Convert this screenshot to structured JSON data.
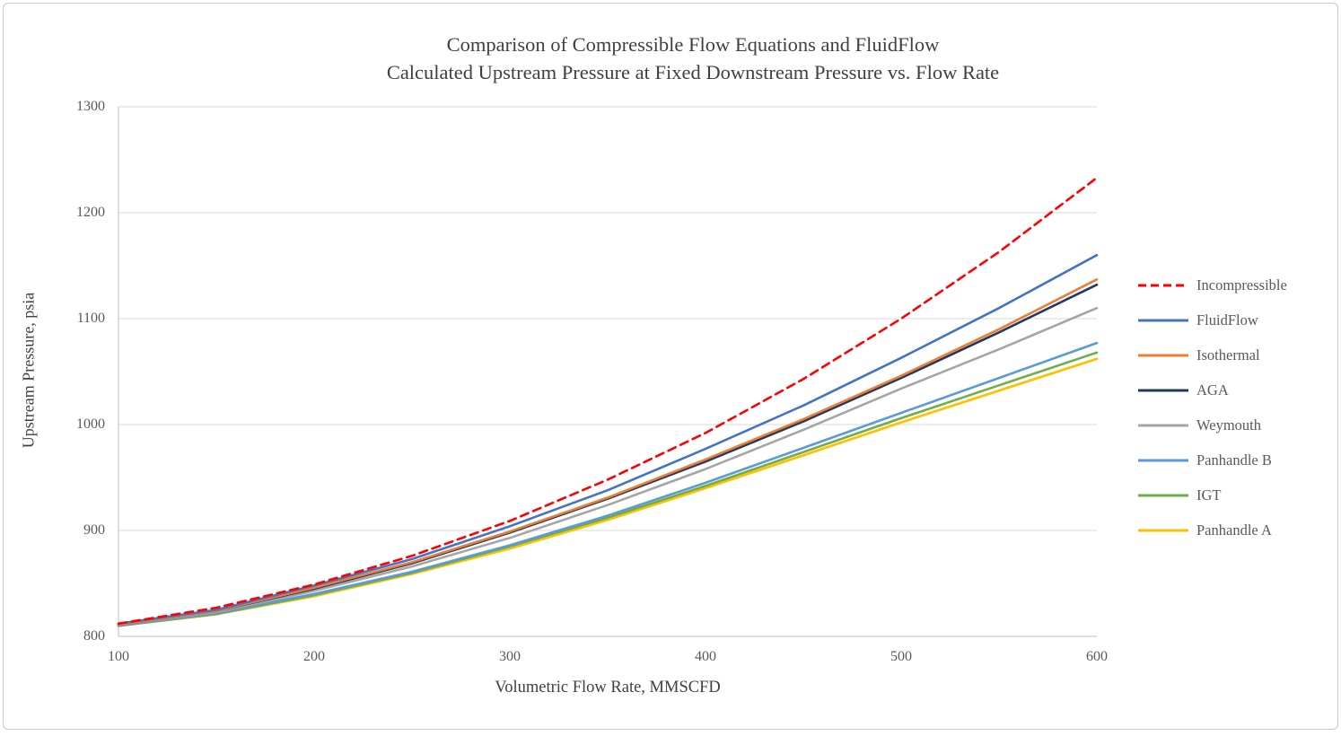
{
  "chart_data": {
    "type": "line",
    "title": "Comparison of Compressible Flow Equations and FluidFlow Calculated Upstream Pressure at Fixed Downstream Pressure vs. Flow Rate",
    "title_line1": "Comparison of Compressible Flow Equations and FluidFlow",
    "title_line2": "Calculated Upstream Pressure at Fixed Downstream Pressure vs. Flow Rate",
    "xlabel": "Volumetric Flow Rate, MMSCFD",
    "ylabel": "Upstream Pressure, psia",
    "xlim": [
      100,
      600
    ],
    "ylim": [
      800,
      1300
    ],
    "x_ticks": [
      100,
      200,
      300,
      400,
      500,
      600
    ],
    "y_ticks": [
      800,
      900,
      1000,
      1100,
      1200,
      1300
    ],
    "grid": "horizontal",
    "legend_position": "right",
    "colors": {
      "gridline": "#d9d9d9",
      "axis": "#bfbfbf",
      "tick_text": "#595959",
      "title_text": "#404040"
    },
    "x": [
      100,
      150,
      200,
      250,
      300,
      350,
      400,
      450,
      500,
      550,
      600
    ],
    "series": [
      {
        "name": "Incompressible",
        "color": "#ff0000",
        "dash": "9 6",
        "width": 2.6,
        "values": [
          812,
          827,
          849,
          876,
          909,
          948,
          992,
          1043,
          1100,
          1163,
          1233
        ]
      },
      {
        "name": "FluidFlow",
        "color": "#4472c4",
        "dash": "",
        "width": 2.6,
        "values": [
          812,
          825,
          848,
          873,
          904,
          938,
          977,
          1018,
          1063,
          1110,
          1160
        ]
      },
      {
        "name": "Isothermal",
        "color": "#ed7d31",
        "dash": "",
        "width": 2.6,
        "values": [
          811,
          824,
          846,
          870,
          899,
          931,
          967,
          1005,
          1046,
          1090,
          1137
        ]
      },
      {
        "name": "AGA",
        "color": "#203864",
        "dash": "",
        "width": 2.6,
        "values": [
          811,
          824,
          845,
          869,
          898,
          930,
          965,
          1003,
          1044,
          1087,
          1132
        ]
      },
      {
        "name": "Weymouth",
        "color": "#a5a5a5",
        "dash": "",
        "width": 2.6,
        "values": [
          811,
          823,
          843,
          866,
          893,
          924,
          958,
          995,
          1034,
          1071,
          1110
        ]
      },
      {
        "name": "Panhandle B",
        "color": "#5b9bd5",
        "dash": "",
        "width": 2.6,
        "values": [
          810,
          822,
          840,
          861,
          886,
          914,
          945,
          978,
          1011,
          1044,
          1077
        ]
      },
      {
        "name": "IGT",
        "color": "#70ad47",
        "dash": "",
        "width": 2.6,
        "values": [
          810,
          821,
          839,
          860,
          885,
          912,
          942,
          974,
          1006,
          1037,
          1068
        ]
      },
      {
        "name": "Panhandle A",
        "color": "#ffc000",
        "dash": "",
        "width": 2.8,
        "values": [
          810,
          821,
          838,
          859,
          883,
          910,
          940,
          971,
          1002,
          1032,
          1062
        ]
      }
    ]
  }
}
